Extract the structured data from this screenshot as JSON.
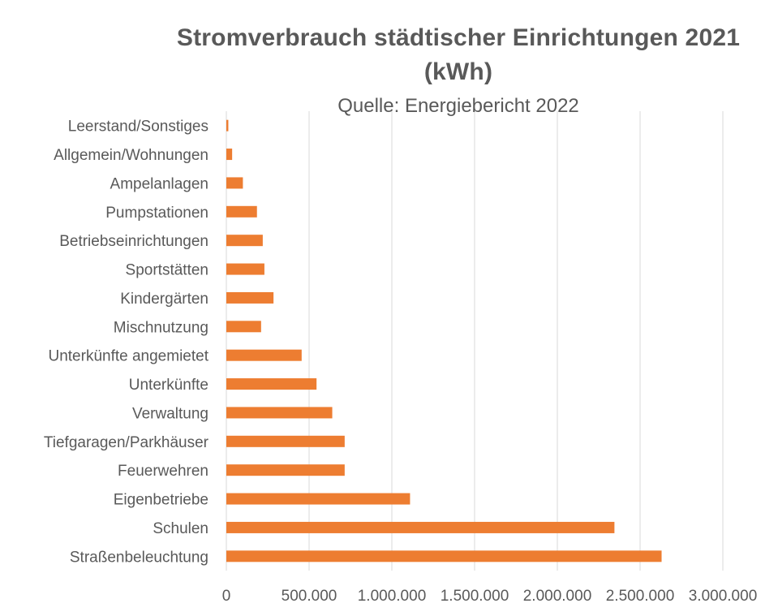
{
  "chart_data": {
    "type": "bar",
    "orientation": "horizontal",
    "title": "Stromverbrauch städtischer Einrichtungen 2021 (kWh)",
    "title_lines": [
      "Stromverbrauch städtischer Einrichtungen 2021",
      "(kWh)"
    ],
    "subtitle": "Quelle: Energiebericht 2022",
    "xlabel": "",
    "ylabel": "",
    "categories": [
      "Leerstand/Sonstiges",
      "Allgemein/Wohnungen",
      "Ampelanlagen",
      "Pumpstationen",
      "Betriebseinrichtungen",
      "Sportstätten",
      "Kindergärten",
      "Mischnutzung",
      "Unterkünfte angemietet",
      "Unterkünfte",
      "Verwaltung",
      "Tiefgaragen/Parkhäuser",
      "Feuerwehren",
      "Eigenbetriebe",
      "Schulen",
      "Straßenbeleuchtung"
    ],
    "values": [
      12000,
      35000,
      100000,
      185000,
      220000,
      230000,
      285000,
      210000,
      455000,
      545000,
      640000,
      715000,
      715000,
      1110000,
      2345000,
      2630000
    ],
    "xlim": [
      0,
      3000000
    ],
    "xticks": [
      0,
      500000,
      1000000,
      1500000,
      2000000,
      2500000,
      3000000
    ],
    "xtick_labels": [
      "0",
      "500.000",
      "1.000.000",
      "1.500.000",
      "2.000.000",
      "2.500.000",
      "3.000.000"
    ],
    "grid": true,
    "legend": "none",
    "bar_color": "#ED7D31"
  }
}
